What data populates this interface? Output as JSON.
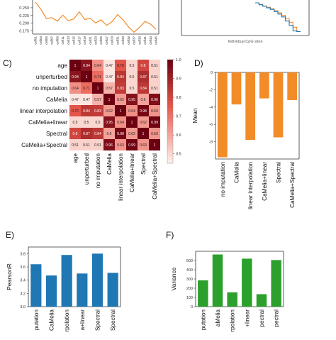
{
  "panels": {
    "C": "C)",
    "D": "D)",
    "E": "E)",
    "F": "F)"
  },
  "colors": {
    "orange": "#F28C28",
    "blue": "#1F77B4",
    "green": "#2CA02C",
    "heat_low": "#FFF0EC",
    "heat_mid": "#E8574A",
    "heat_high": "#6B0010"
  },
  "chart_data": [
    {
      "id": "A",
      "type": "line",
      "ylabel": "",
      "yticks": [
        "0.250",
        "0.225",
        "0.200",
        "0.175"
      ],
      "ylim": [
        0.165,
        0.275
      ],
      "x": [
        "cell01",
        "cell03",
        "cell05",
        "cell07",
        "cell09",
        "cell11",
        "cell13",
        "cell15",
        "cell17",
        "cell19",
        "cell21",
        "cell23",
        "cell25",
        "cell27",
        "cell29",
        "cell31",
        "cell33",
        "cell35",
        "cell37",
        "cell39",
        "cell41",
        "cell43",
        "cell45"
      ],
      "values": [
        0.268,
        0.245,
        0.215,
        0.218,
        0.207,
        0.226,
        0.208,
        0.214,
        0.237,
        0.212,
        0.216,
        0.201,
        0.211,
        0.193,
        0.205,
        0.228,
        0.211,
        0.188,
        0.171,
        0.187,
        0.206,
        0.197,
        0.181
      ]
    },
    {
      "id": "B",
      "type": "line",
      "xlabel": "Individual CpG sites",
      "ylabel": "",
      "series": [
        {
          "color": "orange",
          "values": [
            1.0,
            0.95,
            0.9,
            0.86,
            0.81,
            0.75,
            0.68,
            0.6,
            0.5,
            0.38,
            0.22,
            0.08,
            0.08
          ]
        },
        {
          "color": "blue",
          "values": [
            1.0,
            0.94,
            0.89,
            0.84,
            0.79,
            0.72,
            0.64,
            0.55,
            0.42,
            0.28,
            0.1,
            0.08,
            0.08
          ]
        }
      ]
    },
    {
      "id": "C",
      "type": "heatmap",
      "labels": [
        "age",
        "unperturbed",
        "no imputation",
        "CaMelia",
        "linear interpolation",
        "CaMelia+linear",
        "Spectral",
        "CaMelia+Spectral"
      ],
      "matrix": [
        [
          1,
          0.94,
          0.64,
          0.47,
          0.76,
          0.5,
          0.8,
          0.51
        ],
        [
          0.94,
          1,
          0.71,
          0.47,
          0.84,
          0.5,
          0.87,
          0.51
        ],
        [
          0.64,
          0.71,
          1,
          0.57,
          0.83,
          0.5,
          0.84,
          0.51
        ],
        [
          0.47,
          0.47,
          0.57,
          1,
          0.62,
          0.95,
          0.6,
          0.96
        ],
        [
          0.76,
          0.84,
          0.83,
          0.62,
          1,
          0.64,
          0.98,
          0.63
        ],
        [
          0.5,
          0.5,
          0.5,
          0.95,
          0.64,
          1,
          0.62,
          0.99
        ],
        [
          0.8,
          0.87,
          0.84,
          0.6,
          0.98,
          0.62,
          1,
          0.63
        ],
        [
          0.51,
          0.51,
          0.51,
          0.96,
          0.63,
          0.99,
          0.63,
          1
        ]
      ],
      "colorbar_ticks": [
        "1.0",
        "0.9",
        "0.8",
        "0.7",
        "0.6",
        "0.5"
      ],
      "zlim": [
        0.45,
        1.0
      ]
    },
    {
      "id": "D",
      "type": "bar",
      "ylabel": "Mean",
      "categories": [
        "no imputation",
        "CaMelia",
        "linear interpolation",
        "CaMelia+linear",
        "Spectral",
        "CaMelia+Spectral"
      ],
      "values": [
        -9.8,
        -3.7,
        -7.8,
        -3.0,
        -7.5,
        -3.2
      ],
      "yticks": [
        "0",
        "-2",
        "-4",
        "-6",
        "-8"
      ],
      "ylim": [
        -10,
        0
      ]
    },
    {
      "id": "E",
      "type": "bar",
      "ylabel": "PearsonR",
      "categories": [
        "no imputation",
        "CaMelia",
        "linear interpolation",
        "CaMelia+linear",
        "Spectral",
        "CaMelia+Spectral"
      ],
      "tick_labels_visible": [
        "putation",
        "CaMelia",
        "rpolation",
        "a+linear",
        "Spectral",
        "Spectral"
      ],
      "values": [
        3.64,
        3.47,
        3.78,
        3.5,
        3.8,
        3.51
      ],
      "yticks": [
        "3.8",
        "3.6",
        "3.4",
        "3.2",
        "3.0"
      ],
      "ylim": [
        3.0,
        3.9
      ]
    },
    {
      "id": "F",
      "type": "bar",
      "ylabel": "Variance",
      "categories": [
        "no imputation",
        "CaMelia",
        "linear interpolation",
        "CaMelia+linear",
        "Spectral",
        "CaMelia+Spectral"
      ],
      "tick_labels_visible": [
        "putation",
        "aMelia",
        "rpolation",
        "+linear",
        "pectral",
        "pectral"
      ],
      "values": [
        285,
        565,
        155,
        520,
        135,
        505
      ],
      "yticks": [
        "500",
        "400",
        "300",
        "200",
        "100",
        "0"
      ],
      "ylim": [
        0,
        600
      ]
    }
  ]
}
